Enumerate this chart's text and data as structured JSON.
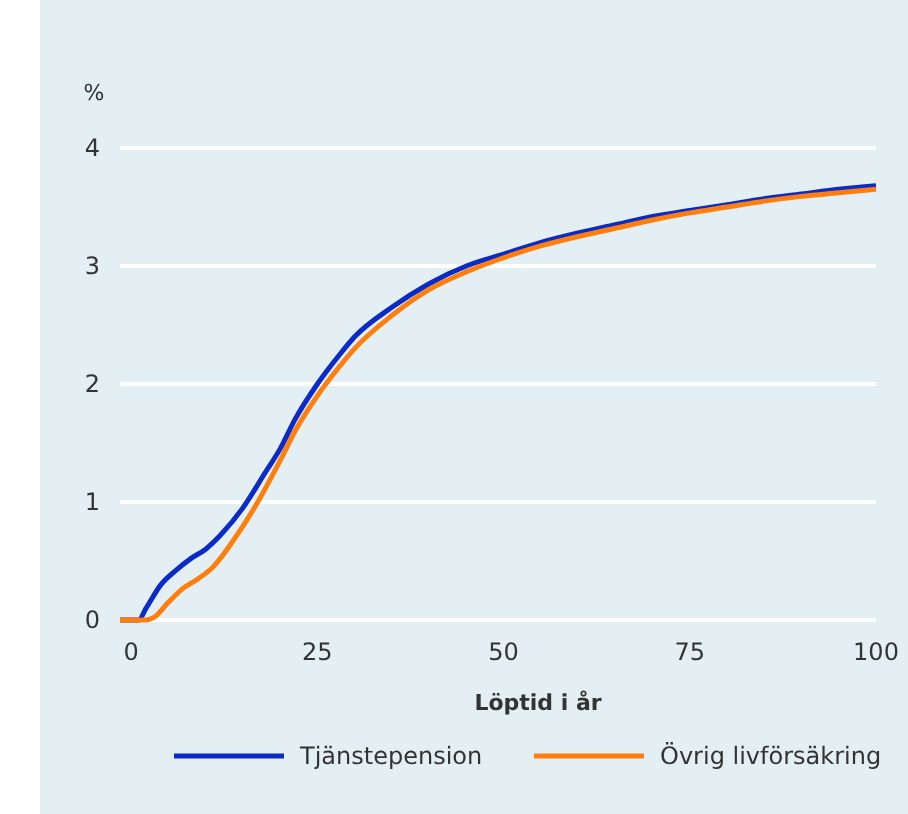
{
  "chart_data": {
    "type": "line",
    "xlabel": "Löptid i år",
    "ylabel": "%",
    "xlim": [
      -1.5,
      100
    ],
    "xticks": [
      0,
      25,
      50,
      75,
      100
    ],
    "ylim": [
      0,
      4
    ],
    "yticks": [
      0,
      1,
      2,
      3,
      4
    ],
    "grid": "y",
    "legend": "bottom",
    "marker": "none",
    "line_style": "solid",
    "x": [
      -1.5,
      1,
      2,
      4,
      6,
      8,
      10,
      12,
      15,
      18,
      20,
      22,
      25,
      28,
      30,
      35,
      40,
      45,
      50,
      55,
      60,
      65,
      70,
      75,
      80,
      85,
      90,
      95,
      100
    ],
    "series": [
      {
        "name": "Tjänstepension",
        "color": "#0a2bc8",
        "values": [
          0,
          0,
          0.1,
          0.3,
          0.42,
          0.52,
          0.6,
          0.72,
          0.95,
          1.25,
          1.45,
          1.7,
          2.0,
          2.25,
          2.4,
          2.65,
          2.85,
          3.0,
          3.1,
          3.2,
          3.28,
          3.35,
          3.42,
          3.47,
          3.52,
          3.57,
          3.61,
          3.65,
          3.68
        ]
      },
      {
        "name": "Övrig livförsäkring",
        "color": "#ff7f0e",
        "x": [
          -1.5,
          2,
          3,
          5,
          7,
          9,
          11,
          14,
          17,
          20,
          22,
          25,
          28,
          30,
          35,
          40,
          45,
          50,
          55,
          60,
          65,
          70,
          75,
          80,
          85,
          90,
          95,
          100
        ],
        "values": [
          0,
          0,
          0.02,
          0.15,
          0.27,
          0.35,
          0.45,
          0.7,
          1.0,
          1.35,
          1.6,
          1.9,
          2.15,
          2.3,
          2.58,
          2.8,
          2.95,
          3.07,
          3.17,
          3.25,
          3.32,
          3.39,
          3.45,
          3.5,
          3.55,
          3.59,
          3.62,
          3.65
        ]
      }
    ]
  }
}
